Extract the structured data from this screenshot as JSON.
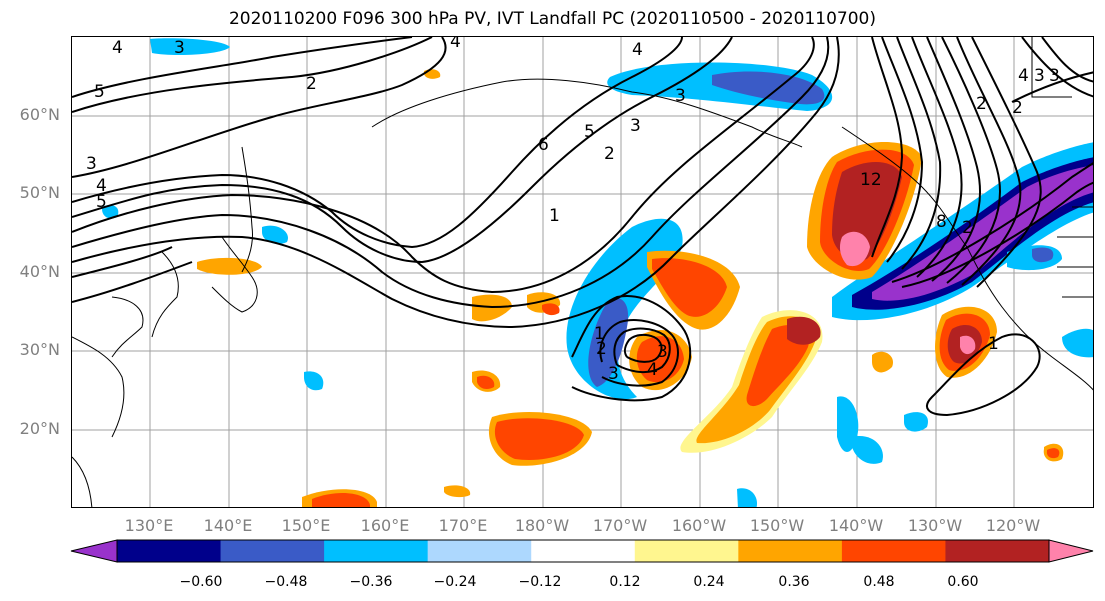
{
  "title": "2020110200 F096 300 hPa PV, IVT Landfall PC (2020110500 - 2020110700)",
  "lat_labels": [
    "60°N",
    "50°N",
    "40°N",
    "30°N",
    "20°N"
  ],
  "lon_labels": [
    "130°E",
    "140°E",
    "150°E",
    "160°E",
    "170°E",
    "180°W",
    "170°W",
    "160°W",
    "150°W",
    "140°W",
    "130°W",
    "120°W"
  ],
  "colorbar": {
    "colors": [
      "#9932CC",
      "#00008B",
      "#3A5BC7",
      "#00BFFF",
      "#ADD8FE",
      "#FFFFFF",
      "#FFF68F",
      "#FFA500",
      "#FF4500",
      "#B22222",
      "#FF82AB"
    ],
    "tick_labels": [
      "−0.60",
      "−0.48",
      "−0.36",
      "−0.24",
      "−0.12",
      "0.12",
      "0.24",
      "0.36",
      "0.48",
      "0.60"
    ]
  },
  "contour_labels": [
    "4",
    "3",
    "5",
    "3",
    "4",
    "5",
    "2",
    "4",
    "4",
    "5",
    "3",
    "2",
    "6",
    "3",
    "1",
    "1",
    "2",
    "3",
    "4",
    "3",
    "12",
    "8",
    "2",
    "3",
    "2",
    "1",
    "4",
    "3",
    "2"
  ]
}
